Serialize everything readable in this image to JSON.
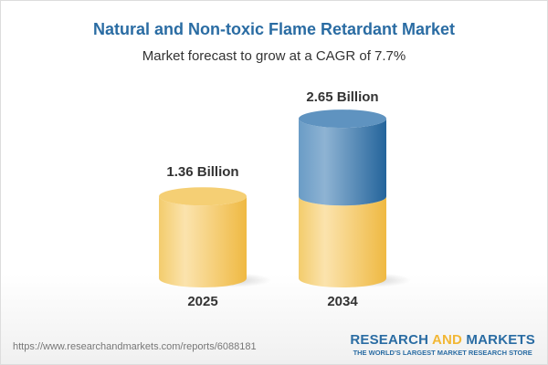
{
  "title": "Natural and Non-toxic Flame Retardant Market",
  "subtitle": "Market forecast to grow at a CAGR of 7.7%",
  "chart_data": {
    "type": "bar",
    "style": "3d-cylinder",
    "categories": [
      "2025",
      "2034"
    ],
    "values": [
      1.36,
      2.65
    ],
    "data_labels": [
      "1.36 Billion",
      "2.65 Billion"
    ],
    "unit": "Billion",
    "colors": {
      "base": "#f2c45e",
      "growth": "#3f7fb3"
    }
  },
  "footer": {
    "url": "https://www.researchandmarkets.com/reports/6088181",
    "logo_part1": "RESEARCH ",
    "logo_part2": "AND",
    "logo_part3": " MARKETS",
    "tagline": "THE WORLD'S LARGEST MARKET RESEARCH STORE"
  }
}
